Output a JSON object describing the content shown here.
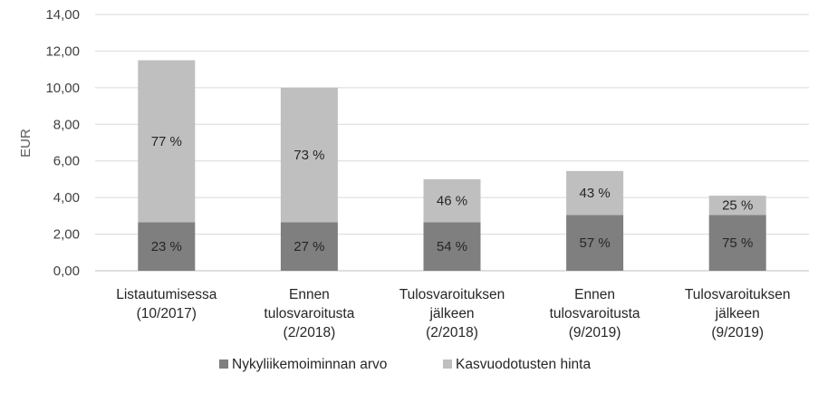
{
  "chart_data": {
    "type": "bar",
    "stacked": true,
    "ylabel": "EUR",
    "ylim": [
      0,
      14
    ],
    "ytick_step": 2,
    "ytick_labels": [
      "0,00",
      "2,00",
      "4,00",
      "6,00",
      "8,00",
      "10,00",
      "12,00",
      "14,00"
    ],
    "grid": true,
    "legend_position": "bottom",
    "categories": [
      [
        "Listautumisessa",
        "(10/2017)"
      ],
      [
        "Ennen",
        "tulosvaroitusta",
        "(2/2018)"
      ],
      [
        "Tulosvaroituksen",
        "jälkeen",
        "(2/2018)"
      ],
      [
        "Ennen",
        "tulosvaroitusta",
        "(9/2019)"
      ],
      [
        "Tulosvaroituksen",
        "jälkeen",
        "(9/2019)"
      ]
    ],
    "series": [
      {
        "name": "Nykyliikemoiminnan arvo",
        "color": "#7f7f7f",
        "values": [
          2.65,
          2.65,
          2.65,
          3.05,
          3.05
        ],
        "labels": [
          "23 %",
          "27 %",
          "54 %",
          "57 %",
          "75 %"
        ]
      },
      {
        "name": "Kasvuodotusten hinta",
        "color": "#bfbfbf",
        "values": [
          8.85,
          7.35,
          2.35,
          2.4,
          1.05
        ],
        "labels": [
          "77 %",
          "73 %",
          "46 %",
          "43 %",
          "25 %"
        ]
      }
    ]
  }
}
